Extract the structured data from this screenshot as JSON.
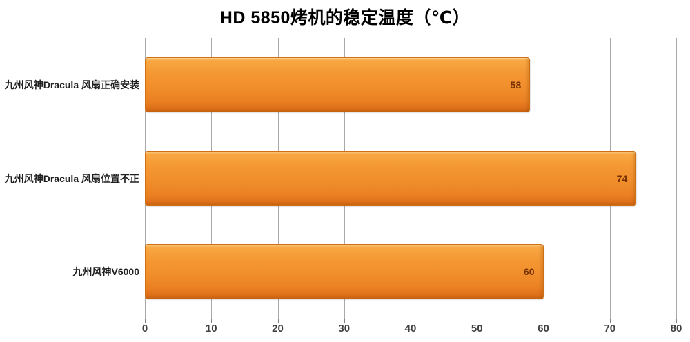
{
  "chart_data": {
    "type": "bar",
    "orientation": "horizontal",
    "title": "HD 5850烤机的稳定温度（℃）",
    "categories": [
      "九州风神Dracula 风扇正确安装",
      "九州风神Dracula 风扇位置不正",
      "九州风神V6000"
    ],
    "values": [
      58,
      74,
      60
    ],
    "xlabel": "",
    "ylabel": "",
    "xlim": [
      0,
      80
    ],
    "xticks": [
      "0",
      "10",
      "20",
      "30",
      "40",
      "50",
      "60",
      "70",
      "80"
    ],
    "grid": "vertical-only",
    "legend": "none",
    "colors": {
      "bar_fill": "#F08E2C",
      "bar_border": "#D06F12",
      "value_label": "#732F00",
      "gridline": "#A9A9A9",
      "axis_line": "#808080",
      "tick_label": "#404040",
      "category_label": "#1F1F1F",
      "title": "#000000",
      "background": "#FFFFFF"
    }
  }
}
